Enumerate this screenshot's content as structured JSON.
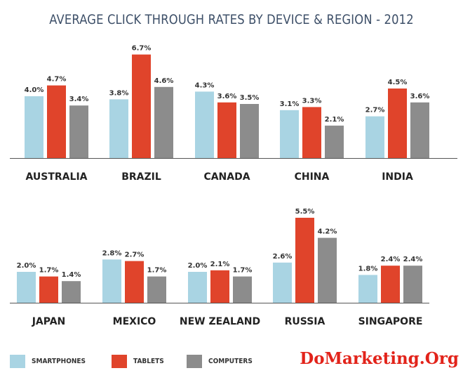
{
  "chart_data": {
    "type": "bar",
    "title": "AVERAGE CLICK THROUGH RATES BY DEVICE & REGION - 2012",
    "series": [
      {
        "name": "SMARTPHONES",
        "color": "#a9d4e3"
      },
      {
        "name": "TABLETS",
        "color": "#e0442b"
      },
      {
        "name": "COMPUTERS",
        "color": "#8c8c8c"
      }
    ],
    "value_unit": "%",
    "panels": [
      {
        "categories": [
          "AUSTRALIA",
          "BRAZIL",
          "CANADA",
          "CHINA",
          "INDIA"
        ],
        "values": [
          [
            4.0,
            4.7,
            3.4
          ],
          [
            3.8,
            6.7,
            4.6
          ],
          [
            4.3,
            3.6,
            3.5
          ],
          [
            3.1,
            3.3,
            2.1
          ],
          [
            2.7,
            4.5,
            3.6
          ]
        ],
        "labels": [
          [
            "4.0%",
            "4.7%",
            "3.4%"
          ],
          [
            "3.8%",
            "6.7%",
            "4.6%"
          ],
          [
            "4.3%",
            "3.6%",
            "3.5%"
          ],
          [
            "3.1%",
            "3.3%",
            "2.1%"
          ],
          [
            "2.7%",
            "4.5%",
            "3.6%"
          ]
        ]
      },
      {
        "categories": [
          "JAPAN",
          "MEXICO",
          "NEW ZEALAND",
          "RUSSIA",
          "SINGAPORE"
        ],
        "values": [
          [
            2.0,
            1.7,
            1.4
          ],
          [
            2.8,
            2.7,
            1.7
          ],
          [
            2.0,
            2.1,
            1.7
          ],
          [
            2.6,
            5.5,
            4.2
          ],
          [
            1.8,
            2.4,
            2.4
          ]
        ],
        "labels": [
          [
            "2.0%",
            "1.7%",
            "1.4%"
          ],
          [
            "2.8%",
            "2.7%",
            "1.7%"
          ],
          [
            "2.0%",
            "2.1%",
            "1.7%"
          ],
          [
            "2.6%",
            "5.5%",
            "4.2%"
          ],
          [
            "1.8%",
            "2.4%",
            "2.4%"
          ]
        ]
      }
    ]
  },
  "watermark": "DoMarketing.Org"
}
